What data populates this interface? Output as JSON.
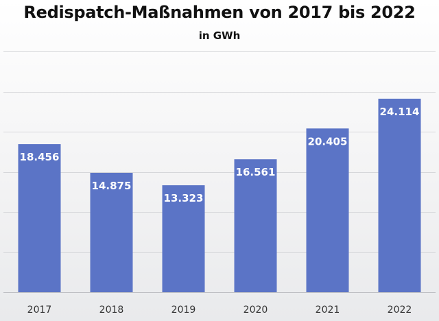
{
  "chart_data": {
    "type": "bar",
    "title": "Redispatch-Maßnahmen von 2017 bis 2022",
    "subtitle": "in GWh",
    "categories": [
      "2017",
      "2018",
      "2019",
      "2020",
      "2021",
      "2022"
    ],
    "values": [
      18456,
      14875,
      13323,
      16561,
      20405,
      24114
    ],
    "data_labels": [
      "18.456",
      "14.875",
      "13.323",
      "16.561",
      "20.405",
      "24.114"
    ],
    "xlabel": "",
    "ylabel": "",
    "ylim": [
      0,
      30000
    ],
    "grid": true,
    "legend": "none",
    "bar_color": "#5b74c6"
  }
}
